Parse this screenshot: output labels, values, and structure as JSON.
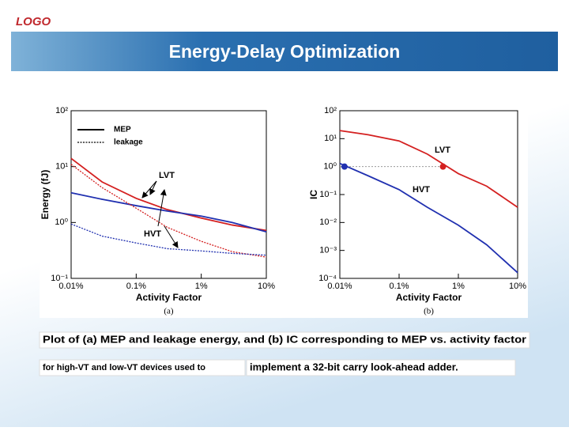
{
  "slide": {
    "logo": "LOGO",
    "title": "Energy-Delay Optimization",
    "caption": [
      "Plot of (a) MEP and leakage energy, and (b) IC corresponding to MEP vs. activity factor",
      "for high-VT and low-VT devices used to",
      "implement a 32-bit carry look-ahead adder."
    ]
  },
  "chart_data": [
    {
      "type": "line",
      "subcaption": "(a)",
      "x_label": "Activity Factor",
      "y_label": "Energy (fJ)",
      "log_x": true,
      "log_y": true,
      "xlim": [
        0.01,
        10
      ],
      "xticks": [
        {
          "value": 0.01,
          "label": "0.01%"
        },
        {
          "value": 0.1,
          "label": "0.1%"
        },
        {
          "value": 1,
          "label": "1%"
        },
        {
          "value": 10,
          "label": "10%"
        }
      ],
      "ylim": [
        0.1,
        100
      ],
      "yticks": [
        {
          "value": 0.1,
          "label": "10⁻¹"
        },
        {
          "value": 1,
          "label": "10⁰"
        },
        {
          "value": 10,
          "label": "10¹"
        },
        {
          "value": 100,
          "label": "10²"
        }
      ],
      "x": [
        0.01,
        0.03,
        0.1,
        0.3,
        1,
        3,
        10
      ],
      "legend": [
        {
          "label": "MEP",
          "style": "solid"
        },
        {
          "label": "leakage",
          "style": "dotted"
        }
      ],
      "series": [
        {
          "color": "#d42020",
          "style": "solid",
          "values": [
            14,
            5.3,
            2.7,
            1.7,
            1.2,
            0.9,
            0.72
          ]
        },
        {
          "color": "#2030b0",
          "style": "solid",
          "values": [
            3.4,
            2.6,
            2.0,
            1.6,
            1.3,
            1.0,
            0.68
          ]
        },
        {
          "color": "#d42020",
          "style": "dotted",
          "values": [
            11,
            4.2,
            1.8,
            0.82,
            0.46,
            0.3,
            0.24
          ]
        },
        {
          "color": "#2030b0",
          "style": "dotted",
          "values": [
            0.94,
            0.57,
            0.43,
            0.34,
            0.31,
            0.28,
            0.26
          ]
        }
      ],
      "annotations": [
        "LVT",
        "HVT"
      ]
    },
    {
      "type": "line",
      "subcaption": "(b)",
      "x_label": "Activity Factor",
      "y_label": "IC",
      "log_x": true,
      "log_y": true,
      "xlim": [
        0.01,
        10
      ],
      "xticks": [
        {
          "value": 0.01,
          "label": "0.01%"
        },
        {
          "value": 0.1,
          "label": "0.1%"
        },
        {
          "value": 1,
          "label": "1%"
        },
        {
          "value": 10,
          "label": "10%"
        }
      ],
      "ylim": [
        0.0001,
        100
      ],
      "yticks": [
        {
          "value": 0.0001,
          "label": "10⁻⁴"
        },
        {
          "value": 0.001,
          "label": "10⁻³"
        },
        {
          "value": 0.01,
          "label": "10⁻²"
        },
        {
          "value": 0.1,
          "label": "10⁻¹"
        },
        {
          "value": 1,
          "label": "10⁰"
        },
        {
          "value": 10,
          "label": "10¹"
        },
        {
          "value": 100,
          "label": "10²"
        }
      ],
      "x": [
        0.01,
        0.03,
        0.1,
        0.3,
        1,
        3,
        10
      ],
      "hline": 1,
      "series": [
        {
          "color": "#d42020",
          "style": "solid",
          "values": [
            19.5,
            13.8,
            8.3,
            2.8,
            0.56,
            0.2,
            0.035
          ]
        },
        {
          "color": "#2030b0",
          "style": "solid",
          "values": [
            1.3,
            0.47,
            0.15,
            0.035,
            0.008,
            0.0016,
            0.00016
          ]
        }
      ],
      "points": [
        {
          "x": 0.012,
          "y": 1,
          "color": "#2030b0"
        },
        {
          "x": 0.55,
          "y": 1,
          "color": "#d42020"
        }
      ],
      "annotations": [
        "LVT",
        "HVT"
      ]
    }
  ]
}
